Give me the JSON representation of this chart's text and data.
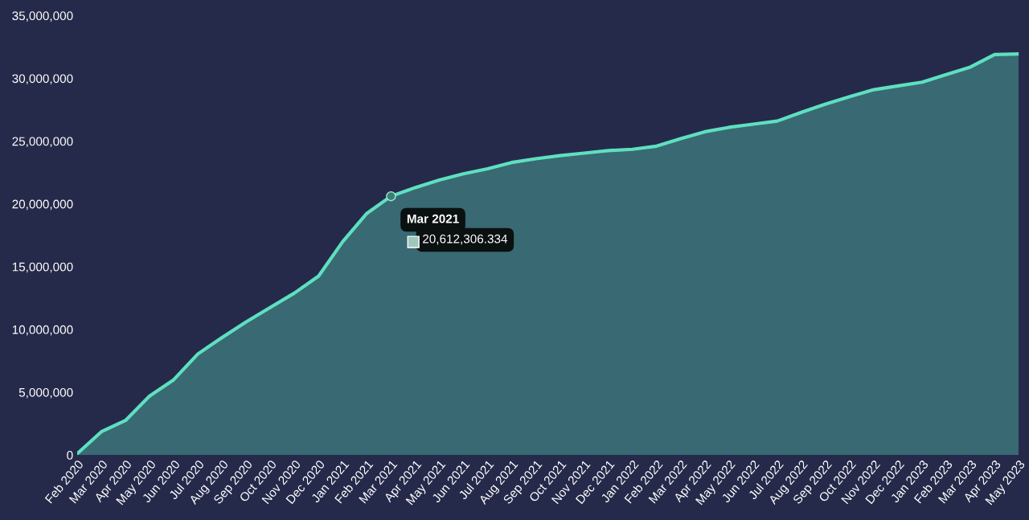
{
  "chart_data": {
    "type": "area",
    "categories": [
      "Feb 2020",
      "Mar 2020",
      "Apr 2020",
      "May 2020",
      "Jun 2020",
      "Jul 2020",
      "Aug 2020",
      "Sep 2020",
      "Oct 2020",
      "Nov 2020",
      "Dec 2020",
      "Jan 2021",
      "Feb 2021",
      "Mar 2021",
      "Apr 2021",
      "May 2021",
      "Jun 2021",
      "Jul 2021",
      "Aug 2021",
      "Sep 2021",
      "Oct 2021",
      "Nov 2021",
      "Dec 2021",
      "Jan 2022",
      "Feb 2022",
      "Mar 2022",
      "Apr 2022",
      "May 2022",
      "Jun 2022",
      "Jul 2022",
      "Aug 2022",
      "Sep 2022",
      "Oct 2022",
      "Nov 2022",
      "Dec 2022",
      "Jan 2023",
      "Feb 2023",
      "Mar 2023",
      "Apr 2023",
      "May 2023"
    ],
    "series": [
      {
        "color": "#5ee0c0",
        "values": [
          100000,
          1850000,
          2750000,
          4700000,
          6000000,
          8050000,
          9350000,
          10600000,
          11750000,
          12900000,
          14250000,
          17000000,
          19250000,
          20612306.334,
          21300000,
          21900000,
          22400000,
          22800000,
          23300000,
          23600000,
          23850000,
          24050000,
          24250000,
          24350000,
          24600000,
          25200000,
          25750000,
          26100000,
          26350000,
          26600000,
          27300000,
          27950000,
          28550000,
          29100000,
          29400000,
          29700000,
          30300000,
          30900000,
          31900000,
          31950000
        ]
      }
    ],
    "ylim": [
      0,
      35000000
    ],
    "yticks": [
      {
        "value": 0,
        "label": "0"
      },
      {
        "value": 5000000,
        "label": "5,000,000"
      },
      {
        "value": 10000000,
        "label": "10,000,000"
      },
      {
        "value": 15000000,
        "label": "15,000,000"
      },
      {
        "value": 20000000,
        "label": "20,000,000"
      },
      {
        "value": 25000000,
        "label": "25,000,000"
      },
      {
        "value": 30000000,
        "label": "30,000,000"
      },
      {
        "value": 35000000,
        "label": "35,000,000"
      }
    ],
    "grid": false,
    "legend": false,
    "annotations": [
      {
        "text": "Mar 2021",
        "x": "Mar 2021",
        "y": 20612306.334
      },
      "20,612,306.334"
    ]
  }
}
